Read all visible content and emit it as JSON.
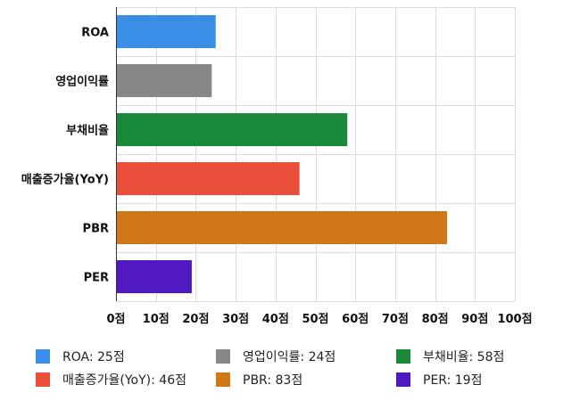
{
  "chart_data": {
    "type": "bar",
    "orientation": "horizontal",
    "categories": [
      "ROA",
      "영업이익률",
      "부채비율",
      "매출증가율(YoY)",
      "PBR",
      "PER"
    ],
    "values": [
      25,
      24,
      58,
      46,
      83,
      19
    ],
    "colors": [
      "#3a8ee6",
      "#888888",
      "#1a8a3a",
      "#ea4f3b",
      "#d07718",
      "#5018c0"
    ],
    "xlim": [
      0,
      100
    ],
    "x_ticks": [
      "0점",
      "10점",
      "20점",
      "30점",
      "40점",
      "50점",
      "60점",
      "70점",
      "80점",
      "90점",
      "100점"
    ],
    "grid": true,
    "legend_position": "bottom"
  },
  "legend": [
    {
      "label": "ROA: 25점",
      "color": "#3a8ee6"
    },
    {
      "label": "영업이익률: 24점",
      "color": "#888888"
    },
    {
      "label": "부채비율: 58점",
      "color": "#1a8a3a"
    },
    {
      "label": "매출증가율(YoY): 46점",
      "color": "#ea4f3b"
    },
    {
      "label": "PBR: 83점",
      "color": "#d07718"
    },
    {
      "label": "PER: 19점",
      "color": "#5018c0"
    }
  ]
}
